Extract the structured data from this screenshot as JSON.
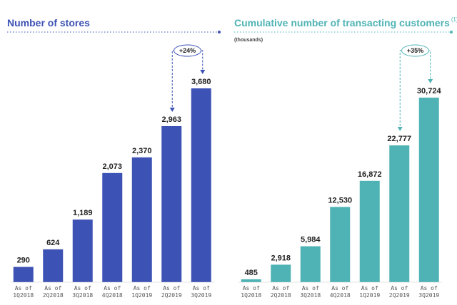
{
  "chart_data": [
    {
      "type": "bar",
      "title": "Number of stores",
      "categories": [
        [
          "As of",
          "1Q2018"
        ],
        [
          "As of",
          "2Q2018"
        ],
        [
          "As of",
          "3Q2018"
        ],
        [
          "As of",
          "4Q2018"
        ],
        [
          "As of",
          "1Q2019"
        ],
        [
          "As of",
          "2Q2019"
        ],
        [
          "As of",
          "3Q2019"
        ]
      ],
      "values": [
        290,
        624,
        1189,
        2073,
        2370,
        2963,
        3680
      ],
      "value_labels": [
        "290",
        "624",
        "1,189",
        "2,073",
        "2,370",
        "2,963",
        "3,680"
      ],
      "ylim": [
        0,
        3680
      ],
      "grid": false,
      "bar_color": "#3d52b5",
      "growth_annotation": {
        "label": "+24%",
        "from_index": 5,
        "to_index": 6
      }
    },
    {
      "type": "bar",
      "title": "Cumulative number of transacting customers",
      "title_footnote": "(1)",
      "subtitle": "(thousands)",
      "categories": [
        [
          "As of",
          "1Q2018"
        ],
        [
          "As of",
          "2Q2018"
        ],
        [
          "As of",
          "3Q2018"
        ],
        [
          "As of",
          "4Q2018"
        ],
        [
          "As of",
          "1Q2019"
        ],
        [
          "As of",
          "2Q2019"
        ],
        [
          "As of",
          "3Q2019"
        ]
      ],
      "values": [
        485,
        2918,
        5984,
        12530,
        16872,
        22777,
        30724
      ],
      "value_labels": [
        "485",
        "2,918",
        "5,984",
        "12,530",
        "16,872",
        "22,777",
        "30,724"
      ],
      "ylim": [
        0,
        30724
      ],
      "grid": false,
      "bar_color": "#4fb3b5",
      "growth_annotation": {
        "label": "+35%",
        "from_index": 5,
        "to_index": 6
      }
    }
  ]
}
